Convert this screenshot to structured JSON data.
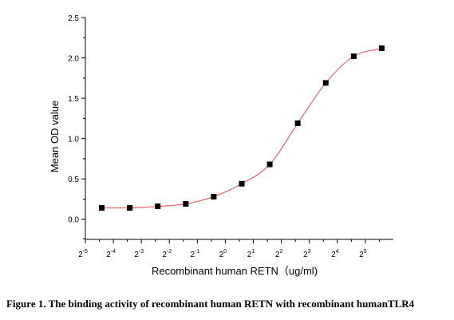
{
  "caption": "Figure 1. The binding activity of recombinant human RETN with recombinant humanTLR4",
  "colors": {
    "curve": "#e34a4a",
    "marker": "#000000",
    "axis": "#000000"
  },
  "chart_data": {
    "type": "scatter",
    "title": "",
    "xlabel": "Recombinant human  RETN（ug/ml)",
    "ylabel": "Mean OD value",
    "x_scale": "log2",
    "xlim": [
      0.03125,
      64
    ],
    "ylim": [
      -0.25,
      2.5
    ],
    "x_ticks": [
      {
        "base": "2",
        "exp": "-5"
      },
      {
        "base": "2",
        "exp": "-4"
      },
      {
        "base": "2",
        "exp": "-3"
      },
      {
        "base": "2",
        "exp": "-2"
      },
      {
        "base": "2",
        "exp": "-1"
      },
      {
        "base": "2",
        "exp": "0"
      },
      {
        "base": "2",
        "exp": "1"
      },
      {
        "base": "2",
        "exp": "2"
      },
      {
        "base": "2",
        "exp": "3"
      },
      {
        "base": "2",
        "exp": "4"
      },
      {
        "base": "2",
        "exp": "5"
      }
    ],
    "y_ticks": [
      "0.0",
      "0.5",
      "1.0",
      "1.5",
      "2.0",
      "2.5"
    ],
    "grid": false,
    "legend": "none",
    "series": [
      {
        "x": [
          0.0469,
          0.0938,
          0.1875,
          0.375,
          0.75,
          1.5,
          3,
          6,
          12,
          24,
          48
        ],
        "y": [
          0.14,
          0.14,
          0.16,
          0.19,
          0.28,
          0.44,
          0.68,
          1.19,
          1.69,
          2.02,
          2.12
        ]
      }
    ],
    "fit_curve": "sigmoidal"
  }
}
